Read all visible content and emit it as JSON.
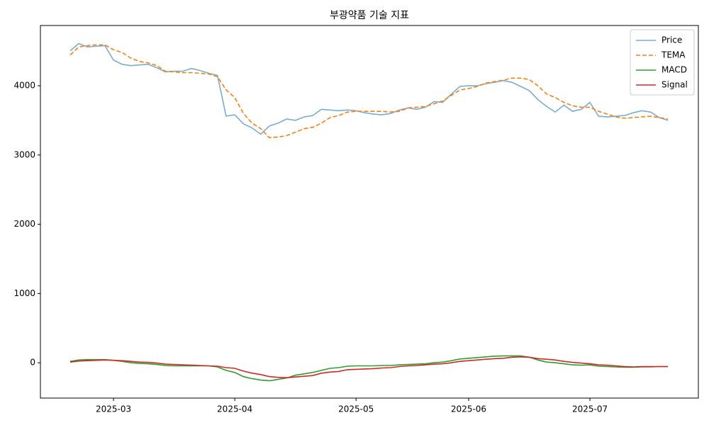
{
  "chart_data": {
    "type": "line",
    "title": "부광약품 기술 지표",
    "categories": [
      null,
      null,
      null,
      null,
      null,
      "2025-03",
      null,
      null,
      null,
      null,
      null,
      null,
      null,
      null,
      null,
      null,
      null,
      null,
      null,
      "2025-04",
      null,
      null,
      null,
      null,
      null,
      null,
      null,
      null,
      null,
      null,
      null,
      null,
      null,
      "2025-05",
      null,
      null,
      null,
      null,
      null,
      null,
      null,
      null,
      null,
      null,
      null,
      null,
      "2025-06",
      null,
      null,
      null,
      null,
      null,
      null,
      null,
      null,
      null,
      null,
      null,
      null,
      null,
      "2025-07",
      null,
      null,
      null,
      null,
      null,
      null,
      null,
      null,
      null
    ],
    "series": [
      {
        "name": "Price",
        "color": "#1f77b4",
        "alpha": 0.6,
        "linestyle": "solid",
        "values": [
          4505,
          4610,
          4560,
          4570,
          4580,
          4370,
          4310,
          4290,
          4300,
          4310,
          4260,
          4200,
          4210,
          4210,
          4250,
          4220,
          4180,
          4150,
          3563,
          3580,
          3450,
          3390,
          3300,
          3420,
          3460,
          3520,
          3500,
          3550,
          3570,
          3660,
          3650,
          3640,
          3650,
          3640,
          3610,
          3590,
          3580,
          3600,
          3650,
          3680,
          3660,
          3690,
          3770,
          3760,
          3880,
          3990,
          4000,
          4000,
          4030,
          4050,
          4075,
          4050,
          3990,
          3930,
          3800,
          3700,
          3620,
          3720,
          3630,
          3660,
          3760,
          3560,
          3550,
          3560,
          3570,
          3610,
          3640,
          3620,
          3540,
          3500
        ]
      },
      {
        "name": "TEMA",
        "color": "#ff7f0e",
        "alpha": 1,
        "linestyle": "dashed",
        "values": [
          4444,
          4560,
          4580,
          4590,
          4590,
          4520,
          4480,
          4400,
          4350,
          4330,
          4290,
          4210,
          4200,
          4190,
          4190,
          4180,
          4170,
          4130,
          3940,
          3830,
          3600,
          3460,
          3380,
          3250,
          3260,
          3280,
          3330,
          3380,
          3400,
          3460,
          3540,
          3570,
          3620,
          3630,
          3630,
          3630,
          3630,
          3620,
          3630,
          3680,
          3690,
          3700,
          3740,
          3780,
          3860,
          3940,
          3960,
          3990,
          4040,
          4060,
          4080,
          4110,
          4110,
          4090,
          4000,
          3880,
          3830,
          3760,
          3710,
          3690,
          3690,
          3630,
          3590,
          3550,
          3530,
          3540,
          3550,
          3560,
          3540,
          3520
        ]
      },
      {
        "name": "MACD",
        "color": "#2ca02c",
        "alpha": 1,
        "linestyle": "solid",
        "values": [
          20,
          40,
          45,
          45,
          45,
          35,
          20,
          0,
          -10,
          -15,
          -25,
          -40,
          -45,
          -45,
          -45,
          -45,
          -45,
          -60,
          -110,
          -140,
          -200,
          -230,
          -250,
          -260,
          -240,
          -220,
          -180,
          -160,
          -140,
          -110,
          -80,
          -70,
          -50,
          -45,
          -45,
          -45,
          -40,
          -40,
          -30,
          -25,
          -20,
          -15,
          0,
          10,
          30,
          55,
          65,
          75,
          85,
          95,
          100,
          100,
          100,
          80,
          40,
          10,
          0,
          -15,
          -30,
          -35,
          -30,
          -50,
          -55,
          -60,
          -65,
          -65,
          -60,
          -60,
          -55,
          -55
        ]
      },
      {
        "name": "Signal",
        "color": "#d62728",
        "alpha": 1,
        "linestyle": "solid",
        "values": [
          10,
          25,
          30,
          35,
          40,
          35,
          30,
          20,
          10,
          5,
          -5,
          -20,
          -25,
          -30,
          -35,
          -40,
          -45,
          -50,
          -70,
          -80,
          -120,
          -150,
          -170,
          -200,
          -210,
          -215,
          -205,
          -195,
          -185,
          -150,
          -135,
          -125,
          -100,
          -95,
          -90,
          -85,
          -75,
          -70,
          -55,
          -45,
          -40,
          -30,
          -20,
          -15,
          0,
          20,
          30,
          40,
          50,
          60,
          65,
          80,
          85,
          80,
          60,
          50,
          40,
          20,
          5,
          -5,
          -15,
          -30,
          -35,
          -45,
          -55,
          -60,
          -55,
          -55,
          -55,
          -55
        ]
      }
    ],
    "ylim": [
      -510,
      4870
    ],
    "yticks": [
      0,
      1000,
      2000,
      3000,
      4000
    ],
    "grid": false,
    "legend": "upper right"
  }
}
